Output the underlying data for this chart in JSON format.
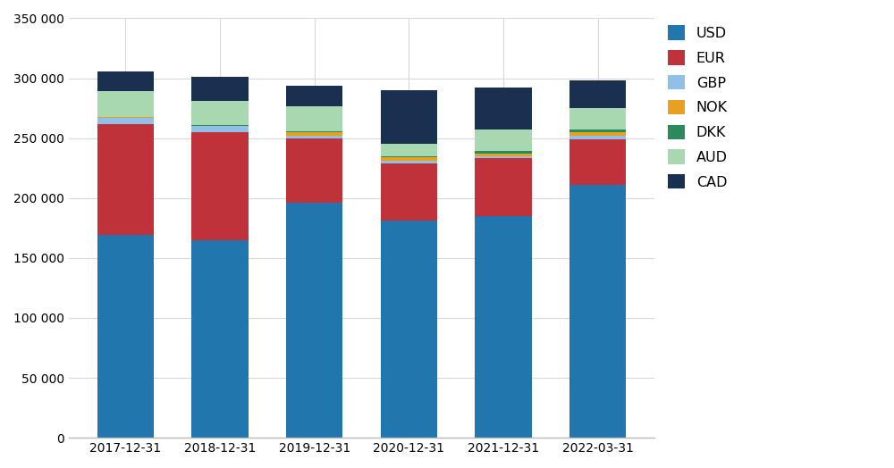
{
  "categories": [
    "2017-12-31",
    "2018-12-31",
    "2019-12-31",
    "2020-12-31",
    "2021-12-31",
    "2022-03-31"
  ],
  "series": {
    "USD": [
      169000,
      165000,
      196000,
      181000,
      185000,
      211000
    ],
    "EUR": [
      93000,
      90000,
      54000,
      48000,
      48000,
      38000
    ],
    "GBP": [
      5000,
      5000,
      2000,
      2000,
      2000,
      3000
    ],
    "NOK": [
      500,
      500,
      3000,
      3000,
      2000,
      3000
    ],
    "DKK": [
      500,
      500,
      500,
      1000,
      2000,
      2000
    ],
    "AUD": [
      21000,
      20000,
      21000,
      10000,
      18000,
      18000
    ],
    "CAD": [
      17000,
      20000,
      17000,
      45000,
      35000,
      23000
    ]
  },
  "colors": {
    "USD": "#2176ae",
    "EUR": "#c0323a",
    "GBP": "#90c0e8",
    "NOK": "#e8a020",
    "DKK": "#2a8a5a",
    "AUD": "#a8d8b0",
    "CAD": "#1a3050"
  },
  "ylim": [
    0,
    350000
  ],
  "yticks": [
    0,
    50000,
    100000,
    150000,
    200000,
    250000,
    300000,
    350000
  ],
  "ytick_labels": [
    "0",
    "50 000",
    "100 000",
    "150 000",
    "200 000",
    "250 000",
    "300 000",
    "350 000"
  ],
  "legend_order": [
    "USD",
    "EUR",
    "GBP",
    "NOK",
    "DKK",
    "AUD",
    "CAD"
  ],
  "bg_color": "#ffffff",
  "grid_color": "#d8d8d8",
  "bar_width": 0.6,
  "figsize": [
    10.0,
    5.24
  ],
  "dpi": 100
}
